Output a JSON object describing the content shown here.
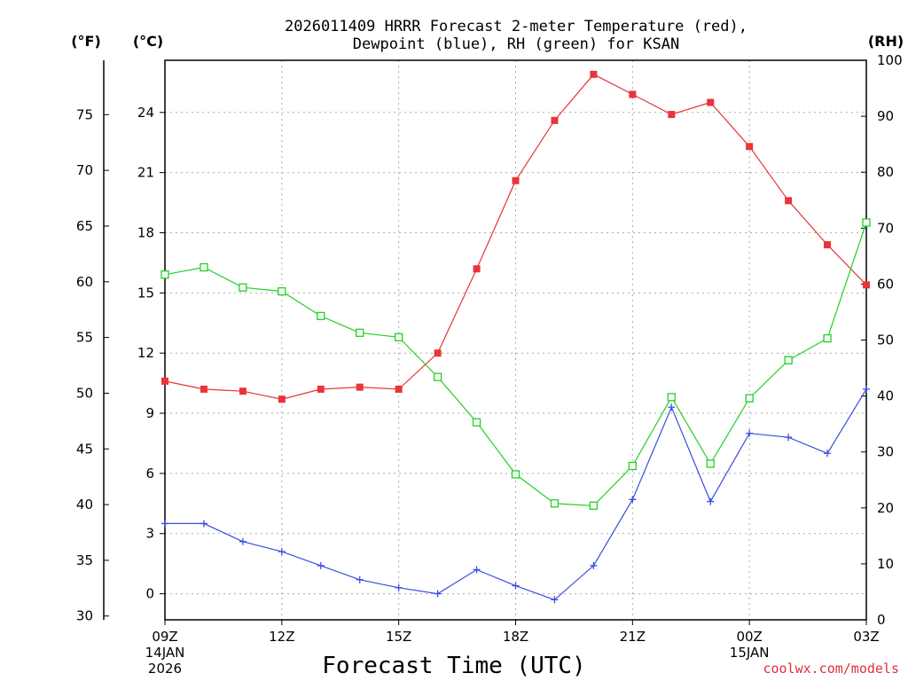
{
  "chart_data": {
    "type": "line",
    "title_line1": "2026011409 HRRR Forecast 2-meter Temperature (red),",
    "title_line2": "Dewpoint (blue), RH (green) for KSAN",
    "units": {
      "fahrenheit": "(°F)",
      "celsius": "(°C)",
      "rh": "(RH)"
    },
    "xlabel": "Forecast Time (UTC)",
    "credit": "coolwx.com/models",
    "x_hours": [
      0,
      1,
      2,
      3,
      4,
      5,
      6,
      7,
      8,
      9,
      10,
      11,
      12,
      13,
      14,
      15,
      16,
      17,
      18
    ],
    "x_ticks": [
      {
        "hour": 0,
        "label": "09Z",
        "sub1": "14JAN",
        "sub2": "2026"
      },
      {
        "hour": 3,
        "label": "12Z",
        "sub1": "",
        "sub2": ""
      },
      {
        "hour": 6,
        "label": "15Z",
        "sub1": "",
        "sub2": ""
      },
      {
        "hour": 9,
        "label": "18Z",
        "sub1": "",
        "sub2": ""
      },
      {
        "hour": 12,
        "label": "21Z",
        "sub1": "",
        "sub2": ""
      },
      {
        "hour": 15,
        "label": "00Z",
        "sub1": "15JAN",
        "sub2": ""
      },
      {
        "hour": 18,
        "label": "03Z",
        "sub1": "",
        "sub2": ""
      }
    ],
    "celsius_ticks": [
      "0",
      "3",
      "6",
      "9",
      "12",
      "15",
      "18",
      "21",
      "24"
    ],
    "fahrenheit_ticks": [
      "30",
      "35",
      "40",
      "45",
      "50",
      "55",
      "60",
      "65",
      "70",
      "75"
    ],
    "rh_ticks": [
      "0",
      "10",
      "20",
      "30",
      "40",
      "50",
      "60",
      "70",
      "80",
      "90",
      "100"
    ],
    "celsius_range": [
      -1.3,
      26.6
    ],
    "rh_range": [
      0,
      100
    ],
    "series": [
      {
        "name": "2-meter Temperature",
        "axis": "celsius",
        "color": "#e8343a",
        "marker": "filled-square",
        "values": [
          10.6,
          10.2,
          10.1,
          9.7,
          10.2,
          10.3,
          10.2,
          12.0,
          16.2,
          20.6,
          23.6,
          25.9,
          24.9,
          23.9,
          24.5,
          22.3,
          19.6,
          17.4,
          15.4
        ]
      },
      {
        "name": "Dewpoint",
        "axis": "celsius",
        "color": "#3a4de0",
        "marker": "plus",
        "values": [
          3.5,
          3.5,
          2.6,
          2.1,
          1.4,
          0.7,
          0.3,
          0.0,
          1.2,
          0.4,
          -0.3,
          1.4,
          4.7,
          9.3,
          4.6,
          8.0,
          7.8,
          7.0,
          10.2
        ]
      },
      {
        "name": "RH",
        "axis": "rh",
        "color": "#22d022",
        "marker": "open-square",
        "values": [
          61.7,
          63.0,
          59.4,
          58.7,
          54.3,
          51.3,
          50.5,
          43.4,
          35.3,
          26.0,
          20.8,
          20.4,
          27.5,
          39.8,
          27.9,
          39.6,
          46.4,
          50.3,
          71.0
        ]
      }
    ]
  }
}
